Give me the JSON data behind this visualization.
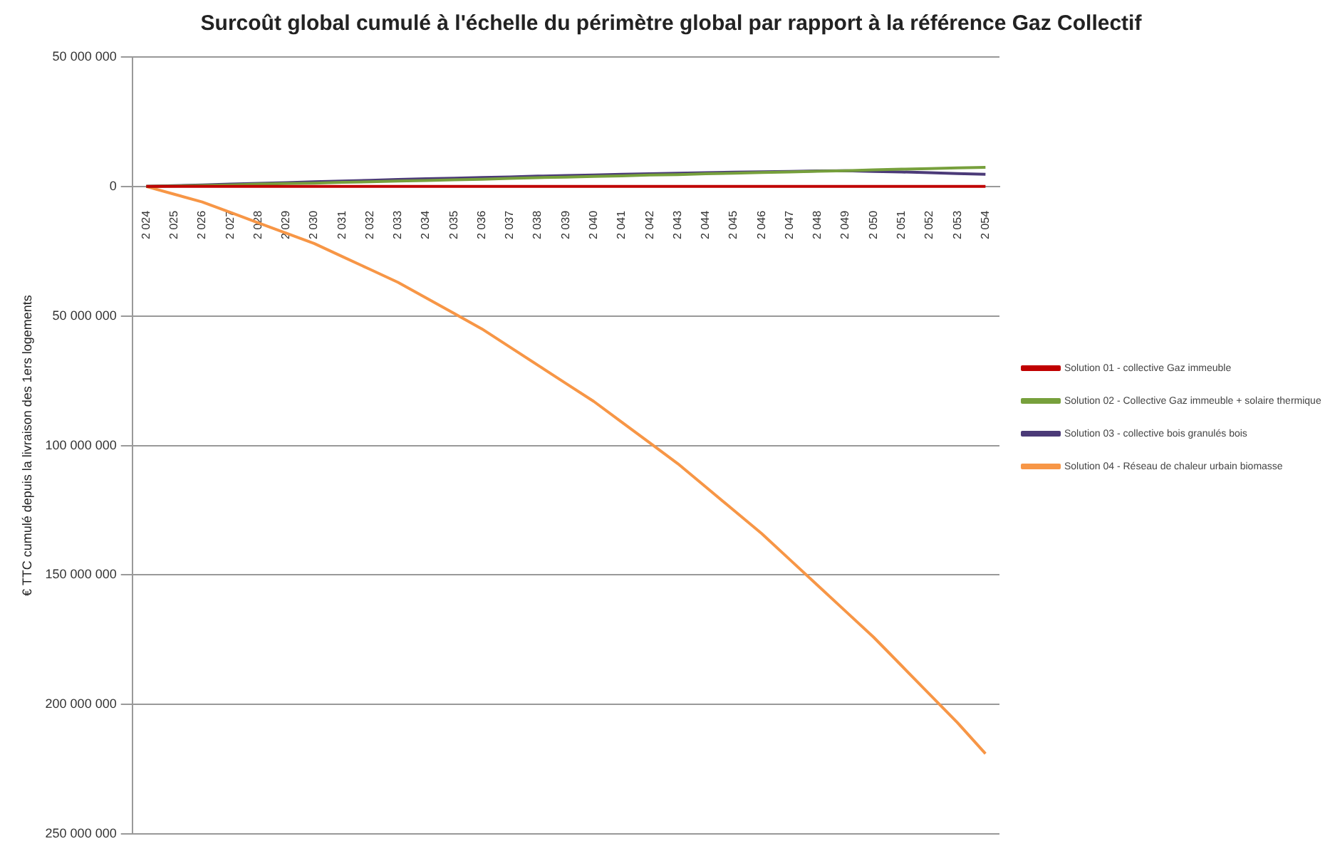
{
  "chart_data": {
    "type": "line",
    "title": "Surcoût global cumulé à l'échelle du périmètre global par rapport à la référence Gaz Collectif",
    "ylabel": "€ TTC cumulé depuis la livraison des 1ers logements",
    "categories": [
      "2 024",
      "2 025",
      "2 026",
      "2 027",
      "2 028",
      "2 029",
      "2 030",
      "2 031",
      "2 032",
      "2 033",
      "2 034",
      "2 035",
      "2 036",
      "2 037",
      "2 038",
      "2 039",
      "2 040",
      "2 041",
      "2 042",
      "2 043",
      "2 044",
      "2 045",
      "2 046",
      "2 047",
      "2 048",
      "2 049",
      "2 050",
      "2 051",
      "2 052",
      "2 053",
      "2 054"
    ],
    "series": [
      {
        "name": "Solution 01 - collective Gaz immeuble",
        "color": "#c00000",
        "values": [
          0,
          0,
          0,
          0,
          0,
          0,
          0,
          0,
          0,
          0,
          0,
          0,
          0,
          0,
          0,
          0,
          0,
          0,
          0,
          0,
          0,
          0,
          0,
          0,
          0,
          0,
          0,
          0,
          0,
          0,
          0
        ]
      },
      {
        "name": "Solution 02 - Collective Gaz immeuble + solaire thermique",
        "color": "#77a03c",
        "values": [
          0,
          200000,
          400000,
          600000,
          900000,
          1100000,
          1300000,
          1600000,
          1800000,
          2100000,
          2300000,
          2600000,
          2800000,
          3100000,
          3400000,
          3600000,
          3900000,
          4100000,
          4400000,
          4600000,
          4900000,
          5100000,
          5400000,
          5600000,
          5900000,
          6100000,
          6400000,
          6700000,
          6900000,
          7200000,
          7400000
        ]
      },
      {
        "name": "Solution 03 - collective bois granulés bois",
        "color": "#4b3a78",
        "values": [
          0,
          300000,
          600000,
          900000,
          1200000,
          1500000,
          1800000,
          2100000,
          2400000,
          2700000,
          3000000,
          3200000,
          3500000,
          3700000,
          4000000,
          4200000,
          4400000,
          4700000,
          4900000,
          5100000,
          5300000,
          5500000,
          5700000,
          5800000,
          6000000,
          6100000,
          5800000,
          5600000,
          5300000,
          5000000,
          4700000
        ]
      },
      {
        "name": "Solution 04 - Réseau de chaleur urbain biomasse",
        "color": "#f79646",
        "values": [
          0,
          -3000000,
          -6000000,
          -10000000,
          -14000000,
          -18000000,
          -22000000,
          -27000000,
          -32000000,
          -37000000,
          -43000000,
          -49000000,
          -55000000,
          -62000000,
          -69000000,
          -76000000,
          -83000000,
          -91000000,
          -99000000,
          -107000000,
          -116000000,
          -125000000,
          -134000000,
          -144000000,
          -154000000,
          -164000000,
          -174000000,
          -185000000,
          -196000000,
          -207000000,
          -219000000
        ]
      }
    ],
    "ylim": [
      -250000000,
      50000000
    ],
    "yticks": [
      {
        "value": 50000000,
        "label": "50 000 000"
      },
      0,
      {
        "value": -50000000,
        "label": "50 000 000"
      },
      {
        "value": -100000000,
        "label": "100 000 000"
      },
      {
        "value": -150000000,
        "label": "150 000 000"
      },
      {
        "value": -200000000,
        "label": "200 000 000"
      },
      {
        "value": -250000000,
        "label": "250 000 000"
      }
    ],
    "grid": "y",
    "legend": "right",
    "marker": "none",
    "line_style": "solid"
  }
}
